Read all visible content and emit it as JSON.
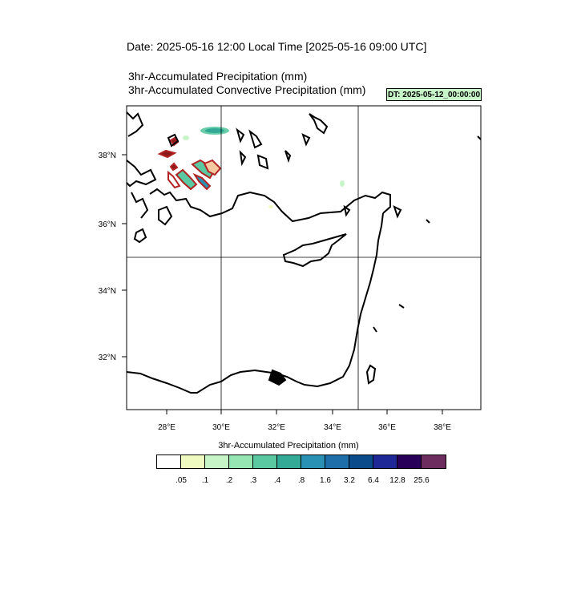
{
  "header": {
    "date_title": "Date: 2025-05-16  12:00 Local Time [2025-05-16  09:00 UTC]",
    "var_title_1": "3hr-Accumulated Precipitation   (mm)",
    "var_title_2": "3hr-Accumulated Convective Precipitation   (mm)",
    "dt_badge": "DT: 2025-05-12_00:00:00",
    "dt_badge_color": "#c8f5c8"
  },
  "map": {
    "lon_labels": [
      "28°E",
      "30°E",
      "32°E",
      "34°E",
      "36°E",
      "38°E"
    ],
    "lat_labels": [
      "38°N",
      "36°N",
      "34°N",
      "32°N"
    ],
    "coast_color": "#000000",
    "convective_contour_color": "#b22222"
  },
  "legend": {
    "title": "3hr-Accumulated Precipitation  (mm)",
    "colors": [
      "#ffffff",
      "#eefac0",
      "#c8f5c8",
      "#96e6b4",
      "#5ac8a0",
      "#32aa96",
      "#2891b4",
      "#1e6eaa",
      "#0a4b8c",
      "#1e2896",
      "#28005a",
      "#6e2d5f"
    ],
    "labels": [
      ".05",
      ".1",
      ".2",
      ".3",
      ".4",
      ".8",
      "1.6",
      "3.2",
      "6.4",
      "12.8",
      "25.6"
    ]
  }
}
